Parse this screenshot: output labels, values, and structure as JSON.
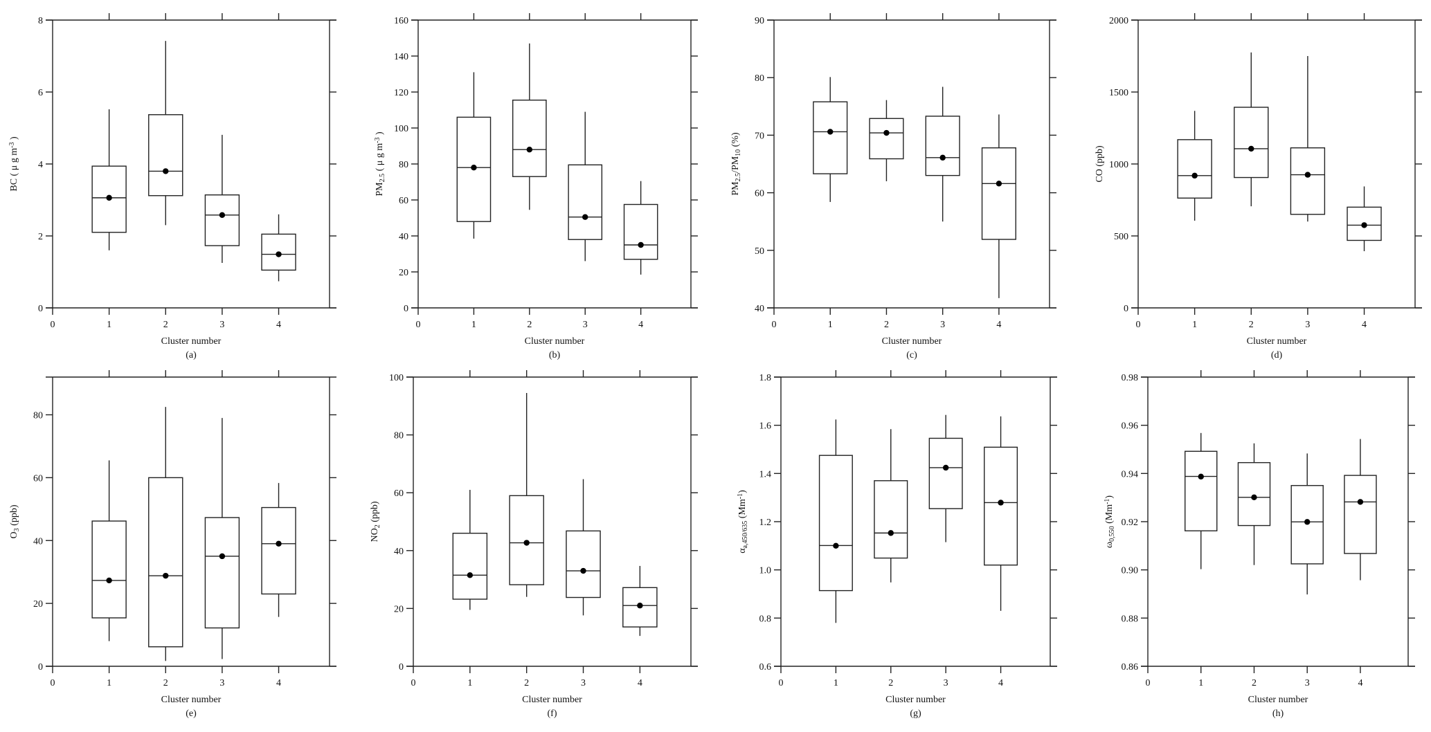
{
  "chart_data": [
    {
      "panel": "(a)",
      "type": "box",
      "xlabel": "Cluster number",
      "ylabel": [
        {
          "t": "BC ( μ g m"
        },
        {
          "t": "-3",
          "sup": true
        },
        {
          "t": " )"
        }
      ],
      "ylim": [
        0,
        8
      ],
      "yticks": [
        0,
        2,
        4,
        6,
        8
      ],
      "yticklabels": [
        "0",
        "2",
        "4",
        "6",
        "8"
      ],
      "xticks": [
        0,
        1,
        2,
        3,
        4
      ],
      "boxes": [
        {
          "cluster": 1,
          "low": 1.6,
          "q1": 2.1,
          "median": 3.06,
          "q3": 3.94,
          "high": 5.52,
          "mean": 3.06
        },
        {
          "cluster": 2,
          "low": 2.3,
          "q1": 3.12,
          "median": 3.8,
          "q3": 5.37,
          "high": 7.42,
          "mean": 3.8
        },
        {
          "cluster": 3,
          "low": 1.25,
          "q1": 1.73,
          "median": 2.58,
          "q3": 3.14,
          "high": 4.81,
          "mean": 2.58
        },
        {
          "cluster": 4,
          "low": 0.74,
          "q1": 1.05,
          "median": 1.49,
          "q3": 2.05,
          "high": 2.6,
          "mean": 1.49
        }
      ]
    },
    {
      "panel": "(b)",
      "type": "box",
      "xlabel": "Cluster number",
      "ylabel": [
        {
          "t": "PM"
        },
        {
          "t": "2.5",
          "sub": true
        },
        {
          "t": " ( μ g m"
        },
        {
          "t": "-3",
          "sup": true
        },
        {
          "t": " )"
        }
      ],
      "ylim": [
        0,
        160
      ],
      "yticks": [
        0,
        20,
        40,
        60,
        80,
        100,
        120,
        140,
        160
      ],
      "yticklabels": [
        "0",
        "20",
        "40",
        "60",
        "80",
        "100",
        "120",
        "140",
        "160"
      ],
      "xticks": [
        0,
        1,
        2,
        3,
        4
      ],
      "boxes": [
        {
          "cluster": 1,
          "low": 38.5,
          "q1": 48,
          "median": 78,
          "q3": 106,
          "high": 131,
          "mean": 78
        },
        {
          "cluster": 2,
          "low": 54.5,
          "q1": 73,
          "median": 88,
          "q3": 115.5,
          "high": 147,
          "mean": 88
        },
        {
          "cluster": 3,
          "low": 26,
          "q1": 38,
          "median": 50.5,
          "q3": 79.5,
          "high": 109,
          "mean": 50.5
        },
        {
          "cluster": 4,
          "low": 18.5,
          "q1": 27,
          "median": 35,
          "q3": 57.5,
          "high": 70.5,
          "mean": 35
        }
      ]
    },
    {
      "panel": "(c)",
      "type": "box",
      "xlabel": "Cluster number",
      "ylabel": [
        {
          "t": "PM"
        },
        {
          "t": "2.5",
          "sub": true
        },
        {
          "t": "/PM"
        },
        {
          "t": "10",
          "sub": true
        },
        {
          "t": " (%)"
        }
      ],
      "ylim": [
        40,
        90
      ],
      "yticks": [
        40,
        50,
        60,
        70,
        80,
        90
      ],
      "yticklabels": [
        "40",
        "50",
        "60",
        "70",
        "80",
        "90"
      ],
      "xticks": [
        0,
        1,
        2,
        3,
        4
      ],
      "boxes": [
        {
          "cluster": 1,
          "low": 58.4,
          "q1": 63.3,
          "median": 70.6,
          "q3": 75.8,
          "high": 80.1,
          "mean": 70.6
        },
        {
          "cluster": 2,
          "low": 62,
          "q1": 65.9,
          "median": 70.4,
          "q3": 72.9,
          "high": 76.1,
          "mean": 70.4
        },
        {
          "cluster": 3,
          "low": 55,
          "q1": 63,
          "median": 66.1,
          "q3": 73.3,
          "high": 78.4,
          "mean": 66.1
        },
        {
          "cluster": 4,
          "low": 41.7,
          "q1": 51.9,
          "median": 61.6,
          "q3": 67.8,
          "high": 73.6,
          "mean": 61.6
        }
      ]
    },
    {
      "panel": "(d)",
      "type": "box",
      "xlabel": "Cluster number",
      "ylabel": [
        {
          "t": "CO (ppb)"
        }
      ],
      "ylim": [
        0,
        2000
      ],
      "yticks": [
        0,
        500,
        1000,
        1500,
        2000
      ],
      "yticklabels": [
        "0",
        "500",
        "1000",
        "1500",
        "2000"
      ],
      "xticks": [
        0,
        1,
        2,
        3,
        4
      ],
      "boxes": [
        {
          "cluster": 1,
          "low": 606,
          "q1": 763,
          "median": 919,
          "q3": 1169,
          "high": 1369,
          "mean": 919
        },
        {
          "cluster": 2,
          "low": 706,
          "q1": 906,
          "median": 1106,
          "q3": 1394,
          "high": 1775,
          "mean": 1106
        },
        {
          "cluster": 3,
          "low": 600,
          "q1": 650,
          "median": 925,
          "q3": 1112,
          "high": 1750,
          "mean": 925
        },
        {
          "cluster": 4,
          "low": 394,
          "q1": 469,
          "median": 575,
          "q3": 700,
          "high": 844,
          "mean": 575
        }
      ]
    },
    {
      "panel": "(e)",
      "type": "box",
      "xlabel": "Cluster number",
      "ylabel": [
        {
          "t": "O"
        },
        {
          "t": "3",
          "sub": true
        },
        {
          "t": " (ppb)"
        }
      ],
      "ylim": [
        0,
        92
      ],
      "yticks": [
        0,
        20,
        40,
        60,
        80
      ],
      "yticklabels": [
        "0",
        "20",
        "40",
        "60",
        "80"
      ],
      "xticks": [
        0,
        1,
        2,
        3,
        4
      ],
      "boxes": [
        {
          "cluster": 1,
          "low": 8,
          "q1": 15.4,
          "median": 27.3,
          "q3": 46.2,
          "high": 65.5,
          "mean": 27.3
        },
        {
          "cluster": 2,
          "low": 1.7,
          "q1": 6.2,
          "median": 28.8,
          "q3": 60,
          "high": 82.5,
          "mean": 28.8
        },
        {
          "cluster": 3,
          "low": 2.3,
          "q1": 12.2,
          "median": 35,
          "q3": 47.3,
          "high": 79,
          "mean": 35
        },
        {
          "cluster": 4,
          "low": 15.7,
          "q1": 23,
          "median": 39,
          "q3": 50.5,
          "high": 58.3,
          "mean": 39
        }
      ]
    },
    {
      "panel": "(f)",
      "type": "box",
      "xlabel": "Cluster number",
      "ylabel": [
        {
          "t": "NO"
        },
        {
          "t": "2",
          "sub": true
        },
        {
          "t": " (ppb)"
        }
      ],
      "ylim": [
        0,
        100
      ],
      "yticks": [
        0,
        20,
        40,
        60,
        80,
        100
      ],
      "yticklabels": [
        "0",
        "20",
        "40",
        "60",
        "80",
        "100"
      ],
      "xticks": [
        0,
        1,
        2,
        3,
        4
      ],
      "boxes": [
        {
          "cluster": 1,
          "low": 19.5,
          "q1": 23.2,
          "median": 31.5,
          "q3": 46,
          "high": 61,
          "mean": 31.5
        },
        {
          "cluster": 2,
          "low": 24,
          "q1": 28.2,
          "median": 42.7,
          "q3": 59,
          "high": 94.5,
          "mean": 42.7
        },
        {
          "cluster": 3,
          "low": 17.6,
          "q1": 23.8,
          "median": 33,
          "q3": 46.8,
          "high": 64.7,
          "mean": 33
        },
        {
          "cluster": 4,
          "low": 10.5,
          "q1": 13.6,
          "median": 21,
          "q3": 27.2,
          "high": 34.7,
          "mean": 21
        }
      ]
    },
    {
      "panel": "(g)",
      "type": "box",
      "xlabel": "Cluster number",
      "ylabel": [
        {
          "t": "α"
        },
        {
          "t": "a,450/635",
          "sub": true
        },
        {
          "t": " (Mm"
        },
        {
          "t": "-1",
          "sup": true
        },
        {
          "t": ")"
        }
      ],
      "ylim": [
        0.6,
        1.8
      ],
      "yticks": [
        0.6,
        0.8,
        1.0,
        1.2,
        1.4,
        1.6,
        1.8
      ],
      "yticklabels": [
        "0.6",
        "0.8",
        "1.0",
        "1.2",
        "1.4",
        "1.6",
        "1.8"
      ],
      "xticks": [
        0,
        1,
        2,
        3,
        4
      ],
      "boxes": [
        {
          "cluster": 1,
          "low": 0.78,
          "q1": 0.914,
          "median": 1.101,
          "q3": 1.475,
          "high": 1.624,
          "mean": 1.1
        },
        {
          "cluster": 2,
          "low": 0.948,
          "q1": 1.049,
          "median": 1.153,
          "q3": 1.37,
          "high": 1.584,
          "mean": 1.153
        },
        {
          "cluster": 3,
          "low": 1.115,
          "q1": 1.254,
          "median": 1.424,
          "q3": 1.546,
          "high": 1.643,
          "mean": 1.424
        },
        {
          "cluster": 4,
          "low": 0.83,
          "q1": 1.02,
          "median": 1.279,
          "q3": 1.509,
          "high": 1.637,
          "mean": 1.279
        }
      ]
    },
    {
      "panel": "(h)",
      "type": "box",
      "xlabel": "Cluster number",
      "ylabel": [
        {
          "t": "ω"
        },
        {
          "t": "0,550",
          "sub": true
        },
        {
          "t": " (Mm"
        },
        {
          "t": "-1",
          "sup": true
        },
        {
          "t": ")"
        }
      ],
      "ylim": [
        0.86,
        0.98
      ],
      "yticks": [
        0.86,
        0.88,
        0.9,
        0.92,
        0.94,
        0.96,
        0.98
      ],
      "yticklabels": [
        "0.86",
        "0.88",
        "0.90",
        "0.92",
        "0.94",
        "0.96",
        "0.98"
      ],
      "xticks": [
        0,
        1,
        2,
        3,
        4
      ],
      "boxes": [
        {
          "cluster": 1,
          "low": 0.9003,
          "q1": 0.9162,
          "median": 0.9388,
          "q3": 0.9492,
          "high": 0.9568,
          "mean": 0.9387
        },
        {
          "cluster": 2,
          "low": 0.902,
          "q1": 0.9184,
          "median": 0.9301,
          "q3": 0.9445,
          "high": 0.9525,
          "mean": 0.9301
        },
        {
          "cluster": 3,
          "low": 0.8898,
          "q1": 0.9025,
          "median": 0.9199,
          "q3": 0.935,
          "high": 0.9483,
          "mean": 0.9199
        },
        {
          "cluster": 4,
          "low": 0.8957,
          "q1": 0.9068,
          "median": 0.9282,
          "q3": 0.9392,
          "high": 0.9543,
          "mean": 0.9282
        }
      ]
    }
  ]
}
